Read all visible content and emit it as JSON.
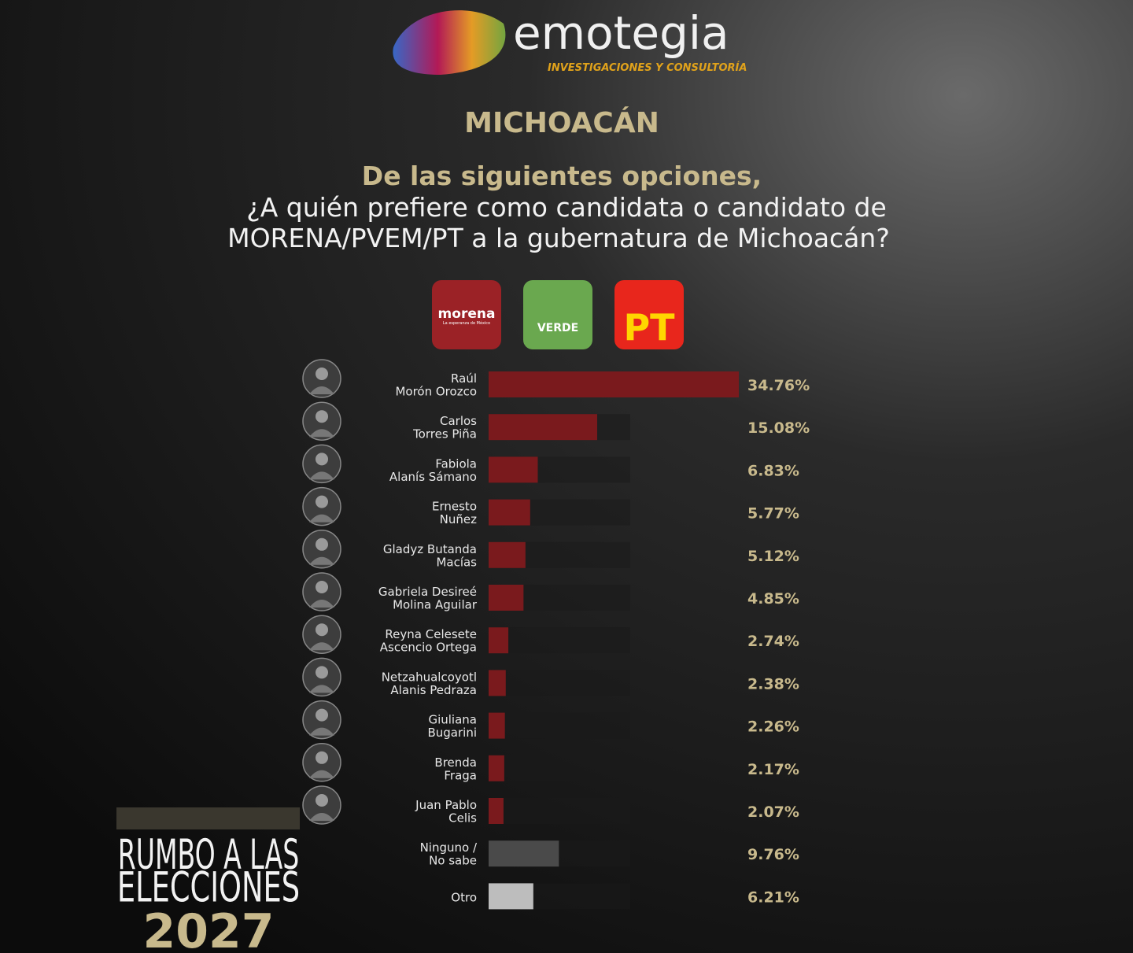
{
  "header": {
    "brand": "emotegia",
    "tagline": "INVESTIGACIONES Y CONSULTORÍA",
    "region": "MICHOACÁN",
    "question": [
      "De las siguientes opciones,",
      "¿A quién prefiere como candidata o candidato de",
      "MORENA/PVEM/PT a la gubernatura de Michoacán?"
    ]
  },
  "parties": [
    {
      "name": "morena",
      "sub": "La esperanza de México",
      "color": "#9b2226"
    },
    {
      "name": "VERDE",
      "color": "#6aa84f"
    },
    {
      "name": "PT",
      "color": "#e8261c"
    }
  ],
  "chart_data": {
    "type": "hbar",
    "categories": [
      [
        "Raúl",
        "Morón Orozco"
      ],
      [
        "Carlos",
        "Torres Piña"
      ],
      [
        "Fabiola",
        "Alanís Sámano"
      ],
      [
        "Ernesto",
        "Nuñez"
      ],
      [
        "Gladyz Butanda",
        "Macías"
      ],
      [
        "Gabriela Desireé",
        "Molina Aguilar"
      ],
      [
        "Reyna Celesete",
        "Ascencio Ortega"
      ],
      [
        "Netzahualcoyotl",
        "Alanis Pedraza"
      ],
      [
        "Giuliana",
        "Bugarini"
      ],
      [
        "Brenda",
        "Fraga"
      ],
      [
        "Juan Pablo",
        "Celis"
      ],
      [
        "Ninguno /",
        "No sabe"
      ],
      [
        "Otro"
      ]
    ],
    "values": [
      34.76,
      15.08,
      6.83,
      5.77,
      5.12,
      4.85,
      2.74,
      2.38,
      2.26,
      2.17,
      2.07,
      9.76,
      6.21
    ],
    "value_labels": [
      "34.76%",
      "15.08%",
      "6.83%",
      "5.77%",
      "5.12%",
      "4.85%",
      "2.74%",
      "2.38%",
      "2.26%",
      "2.17%",
      "2.07%",
      "9.76%",
      "6.21%"
    ],
    "colors": [
      "#7a1a1d",
      "#7a1a1d",
      "#7a1a1d",
      "#7a1a1d",
      "#7a1a1d",
      "#7a1a1d",
      "#7a1a1d",
      "#7a1a1d",
      "#7a1a1d",
      "#7a1a1d",
      "#7a1a1d",
      "#4a4a4a",
      "#bdbdbd"
    ],
    "xlim": [
      0,
      40
    ]
  },
  "footer": [
    "RUMBO A LAS",
    "ELECCIONES",
    "2027"
  ]
}
